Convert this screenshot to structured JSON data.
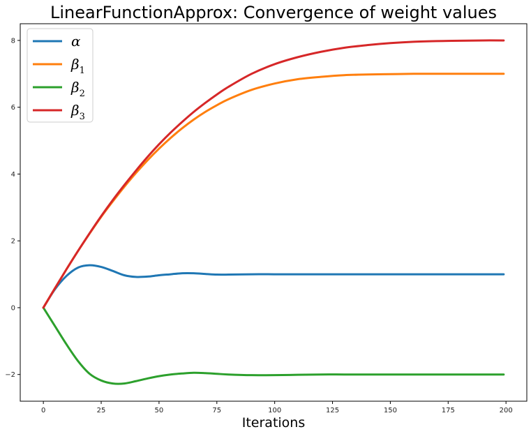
{
  "chart_data": {
    "type": "line",
    "title": "LinearFunctionApprox: Convergence of weight values",
    "xlabel": "Iterations",
    "ylabel": "",
    "xlim": [
      -10,
      209
    ],
    "ylim": [
      -2.8,
      8.5
    ],
    "x_ticks": [
      0,
      25,
      50,
      75,
      100,
      125,
      150,
      175,
      200
    ],
    "y_ticks": [
      -2,
      0,
      2,
      4,
      6,
      8
    ],
    "x_tick_labels": [
      "0",
      "25",
      "50",
      "75",
      "100",
      "125",
      "150",
      "175",
      "200"
    ],
    "y_tick_labels": [
      "−2",
      "0",
      "2",
      "4",
      "6",
      "8"
    ],
    "grid": false,
    "legend_position": "top-left",
    "x": [
      0,
      5,
      10,
      15,
      20,
      25,
      30,
      35,
      40,
      45,
      50,
      55,
      60,
      65,
      70,
      75,
      80,
      90,
      100,
      110,
      120,
      130,
      140,
      150,
      160,
      170,
      180,
      190,
      199
    ],
    "series": [
      {
        "name": "α",
        "legend_symbol": "α",
        "legend_subscript": "",
        "color": "#1f77b4",
        "values": [
          0,
          0.55,
          0.95,
          1.2,
          1.27,
          1.22,
          1.1,
          0.97,
          0.92,
          0.93,
          0.97,
          1.0,
          1.03,
          1.03,
          1.01,
          0.99,
          0.99,
          1.0,
          1.0,
          1.0,
          1.0,
          1.0,
          1.0,
          1.0,
          1.0,
          1.0,
          1.0,
          1.0,
          1.0
        ]
      },
      {
        "name": "β1",
        "legend_symbol": "β",
        "legend_subscript": "1",
        "color": "#ff7f0e",
        "values": [
          0,
          0.58,
          1.15,
          1.7,
          2.22,
          2.72,
          3.18,
          3.62,
          4.03,
          4.41,
          4.76,
          5.08,
          5.37,
          5.63,
          5.86,
          6.06,
          6.24,
          6.52,
          6.71,
          6.84,
          6.91,
          6.96,
          6.98,
          6.99,
          7.0,
          7.0,
          7.0,
          7.0,
          7.0
        ]
      },
      {
        "name": "β2",
        "legend_symbol": "β",
        "legend_subscript": "2",
        "color": "#2ca02c",
        "values": [
          0,
          -0.55,
          -1.1,
          -1.6,
          -1.98,
          -2.18,
          -2.27,
          -2.27,
          -2.2,
          -2.12,
          -2.05,
          -2.0,
          -1.97,
          -1.95,
          -1.96,
          -1.98,
          -2.0,
          -2.02,
          -2.02,
          -2.01,
          -2.0,
          -2.0,
          -2.0,
          -2.0,
          -2.0,
          -2.0,
          -2.0,
          -2.0,
          -2.0
        ]
      },
      {
        "name": "β3",
        "legend_symbol": "β",
        "legend_subscript": "3",
        "color": "#d62728",
        "values": [
          0,
          0.58,
          1.15,
          1.7,
          2.23,
          2.74,
          3.22,
          3.67,
          4.1,
          4.51,
          4.89,
          5.24,
          5.56,
          5.86,
          6.13,
          6.38,
          6.61,
          7.0,
          7.29,
          7.5,
          7.66,
          7.78,
          7.86,
          7.92,
          7.96,
          7.98,
          7.99,
          8.0,
          8.0
        ]
      }
    ]
  }
}
